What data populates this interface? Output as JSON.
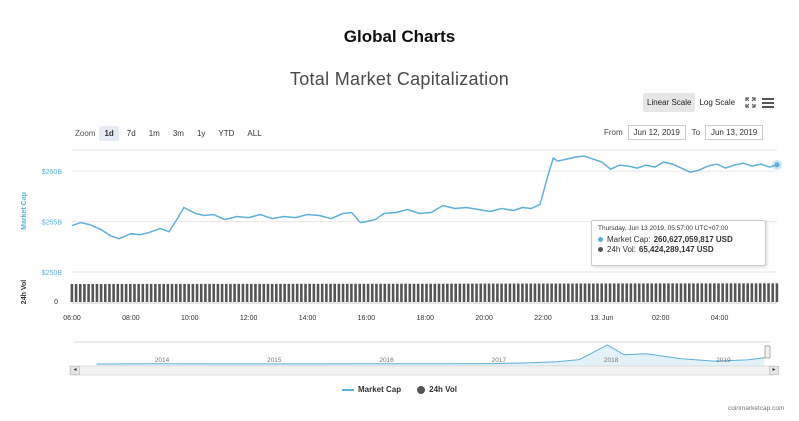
{
  "page": {
    "heading": "Global Charts",
    "chart_title": "Total Market Capitalization",
    "credits": "coinmarketcap.com"
  },
  "controls": {
    "scale_options": [
      "Linear Scale",
      "Log Scale"
    ],
    "active_scale": "Linear Scale",
    "zoom_label": "Zoom",
    "zoom_options": [
      "1d",
      "7d",
      "1m",
      "3m",
      "1y",
      "YTD",
      "ALL"
    ],
    "active_zoom": "1d",
    "from_label": "From",
    "from_value": "Jun 12, 2019",
    "to_label": "To",
    "to_value": "Jun 13, 2019"
  },
  "tooltip": {
    "header": "Thursday, Jun 13 2019, 05:57:00 UTC+07:00",
    "market_cap_label": "Market Cap:",
    "market_cap_value": "260,627,059,817 USD",
    "vol_label": "24h Vol:",
    "vol_value": "65,424,289,147 USD"
  },
  "legend": {
    "market_cap": "Market Cap",
    "vol": "24h Vol"
  },
  "navigator": {
    "year_labels": [
      "2014",
      "2015",
      "2016",
      "2017",
      "2018",
      "2019"
    ]
  },
  "colors": {
    "line": "#5fb0d9",
    "volume": "#555555",
    "axis_text": "#5fb0d9",
    "grid": "#e6e6e6"
  },
  "chart_data": {
    "type": "line",
    "title": "Total Market Capitalization",
    "ylabel": "Market Cap",
    "ylabel_volume": "24h Vol",
    "y_ticks": [
      "$250B",
      "$255B",
      "$260B"
    ],
    "y_tick_values": [
      250,
      255,
      260
    ],
    "volume_ticks": [
      "0"
    ],
    "x_ticks": [
      "06:00",
      "08:00",
      "10:00",
      "12:00",
      "14:00",
      "16:00",
      "18:00",
      "20:00",
      "22:00",
      "13. Jun",
      "02:00",
      "04:00"
    ],
    "x_range_hours": [
      6.0,
      29.95
    ],
    "ylim": [
      250,
      262.1
    ],
    "series": [
      {
        "name": "Market Cap",
        "x": [
          6.0,
          6.3,
          6.6,
          7.0,
          7.3,
          7.6,
          8.0,
          8.3,
          8.6,
          9.0,
          9.3,
          9.6,
          9.8,
          10.0,
          10.2,
          10.5,
          10.8,
          11.2,
          11.6,
          12.0,
          12.4,
          12.8,
          13.2,
          13.6,
          14.0,
          14.4,
          14.8,
          15.2,
          15.5,
          15.8,
          16.0,
          16.3,
          16.6,
          17.0,
          17.4,
          17.8,
          18.2,
          18.6,
          19.0,
          19.4,
          19.8,
          20.2,
          20.6,
          21.0,
          21.3,
          21.6,
          21.9,
          22.2,
          22.35,
          22.5,
          22.8,
          23.1,
          23.4,
          23.7,
          24.0,
          24.3,
          24.6,
          24.9,
          25.2,
          25.5,
          25.8,
          26.1,
          26.4,
          26.7,
          27.0,
          27.3,
          27.6,
          27.9,
          28.2,
          28.5,
          28.8,
          29.1,
          29.4,
          29.7,
          29.95
        ],
        "values": [
          254.6,
          254.9,
          254.7,
          254.2,
          253.6,
          253.3,
          253.8,
          253.7,
          253.9,
          254.3,
          254.0,
          255.4,
          256.4,
          256.1,
          255.8,
          255.6,
          255.7,
          255.2,
          255.5,
          255.4,
          255.7,
          255.3,
          255.5,
          255.4,
          255.7,
          255.6,
          255.3,
          255.8,
          255.9,
          254.9,
          255.0,
          255.2,
          255.8,
          255.9,
          256.2,
          255.8,
          255.9,
          256.6,
          256.3,
          256.4,
          256.2,
          256.0,
          256.3,
          256.1,
          256.4,
          256.3,
          256.7,
          259.9,
          261.3,
          261.0,
          261.2,
          261.4,
          261.5,
          261.2,
          260.9,
          260.2,
          260.6,
          260.5,
          260.3,
          260.6,
          260.4,
          260.9,
          260.7,
          260.3,
          259.9,
          260.1,
          260.5,
          260.7,
          260.3,
          260.6,
          260.8,
          260.5,
          260.7,
          260.4,
          260.63
        ]
      },
      {
        "name": "24h Vol",
        "note_values_billion_usd": "approximately constant",
        "x": [
          6.0,
          12.0,
          18.0,
          24.0,
          29.95
        ],
        "values": [
          63.0,
          63.5,
          64.0,
          64.8,
          65.4
        ]
      }
    ],
    "navigator_series": {
      "x": [
        2013.5,
        2014.0,
        2014.5,
        2015.0,
        2015.5,
        2016.0,
        2016.5,
        2017.0,
        2017.3,
        2017.6,
        2017.8,
        2018.0,
        2018.05,
        2018.2,
        2018.4,
        2018.7,
        2019.0,
        2019.3,
        2019.45
      ],
      "values": [
        2,
        8,
        6,
        4,
        4,
        7,
        11,
        18,
        40,
        95,
        180,
        650,
        780,
        380,
        420,
        220,
        120,
        170,
        260
      ]
    }
  }
}
